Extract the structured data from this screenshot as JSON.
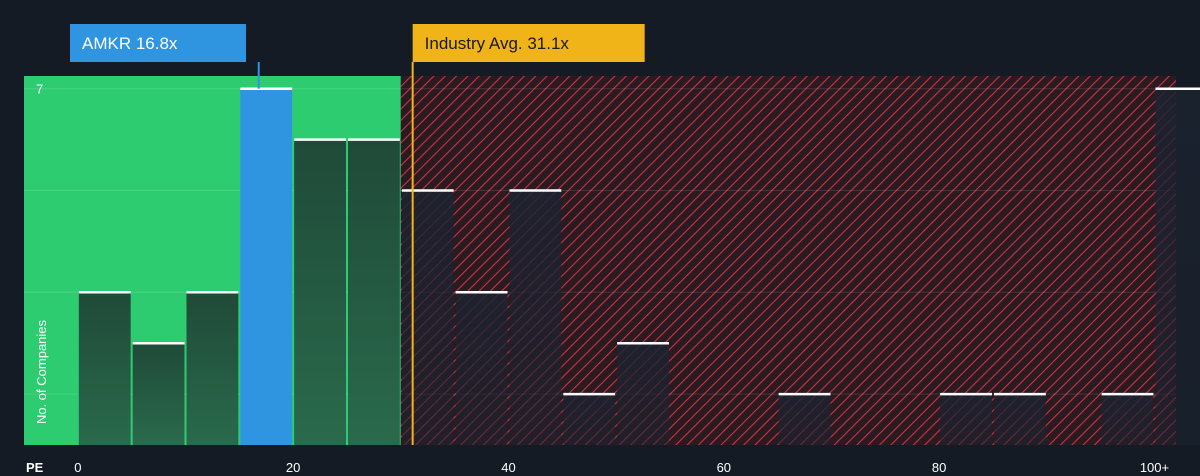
{
  "chart_data": {
    "type": "bar",
    "xlabel": "PE",
    "ylabel": "No. of Companies",
    "x_ticks": [
      "0",
      "20",
      "40",
      "60",
      "80",
      "100+"
    ],
    "y_ticks": [
      "7"
    ],
    "bin_width": 5,
    "xlim": [
      -5,
      102
    ],
    "ylim": [
      0,
      7.25
    ],
    "bins": [
      {
        "start": 0,
        "count": 3
      },
      {
        "start": 5,
        "count": 2
      },
      {
        "start": 10,
        "count": 3
      },
      {
        "start": 15,
        "count": 7,
        "highlight": true
      },
      {
        "start": 20,
        "count": 6
      },
      {
        "start": 25,
        "count": 6
      },
      {
        "start": 30,
        "count": 5
      },
      {
        "start": 35,
        "count": 3
      },
      {
        "start": 40,
        "count": 5
      },
      {
        "start": 45,
        "count": 1
      },
      {
        "start": 50,
        "count": 2
      },
      {
        "start": 65,
        "count": 1
      },
      {
        "start": 80,
        "count": 1
      },
      {
        "start": 85,
        "count": 1
      },
      {
        "start": 95,
        "count": 1
      },
      {
        "start": 100,
        "count": 7
      }
    ],
    "fair_zone_max": 30,
    "company": {
      "label": "AMKR 16.8x",
      "value": 16.8
    },
    "industry": {
      "label": "Industry Avg. 31.1x",
      "value": 31.1
    },
    "colors": {
      "background": "#151b24",
      "fair_zone": "#2ecc71",
      "company": "#2f95e0",
      "industry": "#f0b318",
      "hatch": "#c9353f"
    }
  }
}
